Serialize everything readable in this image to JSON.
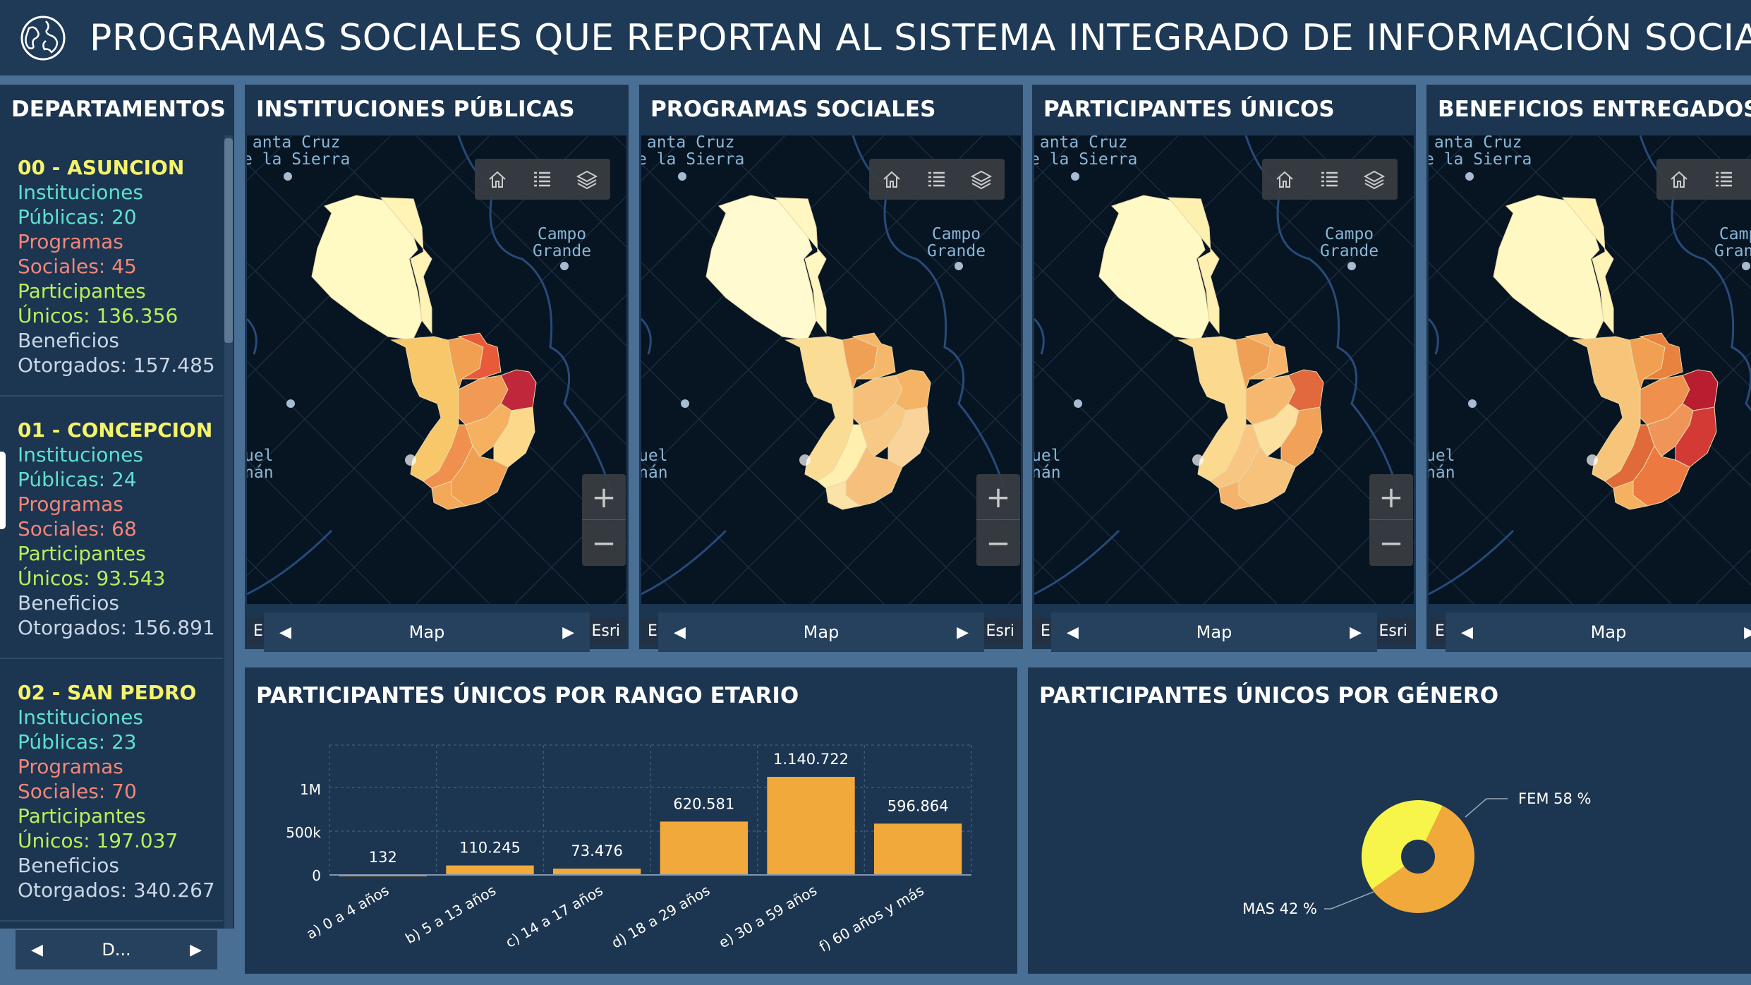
{
  "header": {
    "title": "PROGRAMAS SOCIALES QUE REPORTAN AL SISTEMA INTEGRADO DE INFORMACIÓN SOCIAL - S",
    "icon": "globe-icon"
  },
  "departments": {
    "title": "DEPARTAMENTOS",
    "items": [
      {
        "name": "00 - ASUNCION",
        "inst_a": "Instituciones",
        "inst_b": "Públicas: 20",
        "prog_a": "Programas",
        "prog_b": "Sociales: 45",
        "part_a": "Participantes",
        "part_b": "Únicos: 136.356",
        "ben_a": "Beneficios",
        "ben_b": "Otorgados: 157.485"
      },
      {
        "name": "01 - CONCEPCION",
        "inst_a": "Instituciones",
        "inst_b": "Públicas: 24",
        "prog_a": "Programas",
        "prog_b": "Sociales: 68",
        "part_a": "Participantes",
        "part_b": "Únicos: 93.543",
        "ben_a": "Beneficios",
        "ben_b": "Otorgados: 156.891"
      },
      {
        "name": "02 - SAN PEDRO",
        "inst_a": "Instituciones",
        "inst_b": "Públicas: 23",
        "prog_a": "Programas",
        "prog_b": "Sociales: 70",
        "part_a": "Participantes",
        "part_b": "Únicos: 197.037",
        "ben_a": "Beneficios",
        "ben_b": "Otorgados: 340.267"
      }
    ],
    "pager_label": "D..."
  },
  "maps": [
    {
      "title": "INSTITUCIONES PÚBLICAS",
      "attribution": "Esri, TomTom, Garmin, FAO,...",
      "powered": "Powered by Esri",
      "pager_label": "Map"
    },
    {
      "title": "PROGRAMAS SOCIALES",
      "attribution": "Esri, TomTom, Garmin, FAO...",
      "powered": "Powered by Esri",
      "pager_label": "Map"
    },
    {
      "title": "PARTICIPANTES ÚNICOS",
      "attribution": "Esri, TomTom, Garmin, FAO...",
      "powered": "Powered by Esri",
      "pager_label": "Map"
    },
    {
      "title": "BENEFICIOS ENTREGADOS",
      "attribution": "Esri, TomTom, Garmin, FAO,...",
      "powered": "Powered",
      "pager_label": "Map"
    }
  ],
  "map_labels": {
    "city1": "anta Cruz",
    "city1b": "e la Sierra",
    "city2": "Campo",
    "city2b": "Grande",
    "city3": "uel",
    "city3b": "nán",
    "city4": "Pa"
  },
  "map_icons": [
    "home-icon",
    "legend-list-icon",
    "layers-icon"
  ],
  "colors": {
    "bar": "#f2a93b",
    "fem": "#f2a93b",
    "mas": "#f7f54a",
    "panel": "#1c3550",
    "header": "#1e3a56"
  },
  "chart_data": [
    {
      "type": "bar",
      "title": "PARTICIPANTES ÚNICOS POR RANGO ETARIO",
      "categories": [
        "a) 0 a 4 años",
        "b) 5 a 13 años",
        "c) 14 a 17 años",
        "d) 18 a 29 años",
        "e) 30 a 59 años",
        "f) 60 años y más"
      ],
      "values": [
        132,
        110245,
        73476,
        620581,
        1140722,
        596864
      ],
      "value_labels": [
        "132",
        "110.245",
        "73.476",
        "620.581",
        "1.140.722",
        "596.864"
      ],
      "yticks": [
        0,
        500000,
        1000000
      ],
      "ytick_labels": [
        "0",
        "500k",
        "1M"
      ],
      "ylim": [
        0,
        1140722
      ],
      "grid": true
    },
    {
      "type": "pie",
      "title": "PARTICIPANTES ÚNICOS POR GÉNERO",
      "slices": [
        {
          "label": "FEM 58 %",
          "value": 58
        },
        {
          "label": "MAS 42 %",
          "value": 42
        }
      ]
    }
  ]
}
